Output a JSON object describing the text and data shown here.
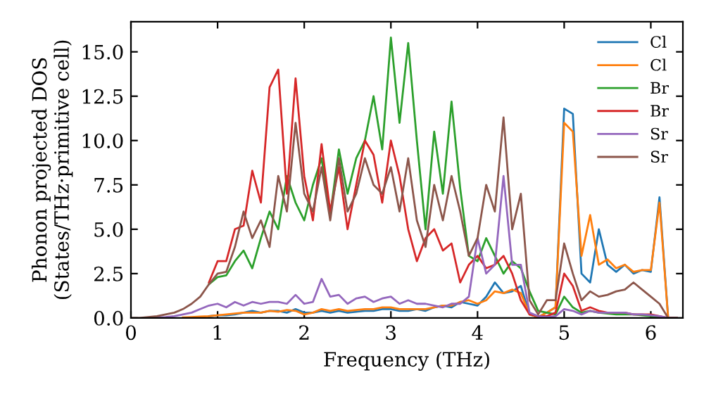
{
  "chart_data": {
    "type": "line",
    "xlabel": "Frequency (THz)",
    "ylabel": "Phonon projected DOS\n(States/THz·primitive cell)",
    "x": [
      0.0,
      0.1,
      0.2,
      0.3,
      0.4,
      0.5,
      0.6,
      0.7,
      0.8,
      0.9,
      1.0,
      1.1,
      1.2,
      1.3,
      1.4,
      1.5,
      1.6,
      1.7,
      1.8,
      1.9,
      2.0,
      2.1,
      2.2,
      2.3,
      2.4,
      2.5,
      2.6,
      2.7,
      2.8,
      2.9,
      3.0,
      3.1,
      3.2,
      3.3,
      3.4,
      3.5,
      3.6,
      3.7,
      3.8,
      3.9,
      4.0,
      4.1,
      4.2,
      4.3,
      4.4,
      4.5,
      4.6,
      4.7,
      4.8,
      4.9,
      5.0,
      5.1,
      5.2,
      5.3,
      5.4,
      5.5,
      5.6,
      5.7,
      5.8,
      5.9,
      6.0,
      6.1,
      6.2,
      6.3
    ],
    "xlim": [
      0,
      6.37
    ],
    "ylim": [
      0,
      16.7
    ],
    "xticks": [
      0,
      1,
      2,
      3,
      4,
      5,
      6
    ],
    "yticks": [
      {
        "value": 0,
        "label": "0.0"
      },
      {
        "value": 2.5,
        "label": "2.5"
      },
      {
        "value": 5,
        "label": "5.0"
      },
      {
        "value": 7.5,
        "label": "7.5"
      },
      {
        "value": 10,
        "label": "10.0"
      },
      {
        "value": 12.5,
        "label": "12.5"
      },
      {
        "value": 15,
        "label": "15.0"
      }
    ],
    "legend": "top right",
    "grid": false,
    "marker": "none",
    "line_style": "solid",
    "series": [
      {
        "name": "Cl",
        "color": "#1f77b4",
        "values": [
          null,
          null,
          null,
          null,
          null,
          null,
          null,
          null,
          null,
          0.1,
          0.15,
          0.15,
          0.2,
          0.3,
          0.4,
          0.3,
          0.4,
          0.4,
          0.3,
          0.5,
          0.3,
          0.3,
          0.4,
          0.3,
          0.4,
          0.3,
          0.35,
          0.4,
          0.4,
          0.5,
          0.5,
          0.4,
          0.4,
          0.5,
          0.4,
          0.6,
          0.7,
          0.6,
          0.9,
          0.8,
          0.7,
          1.2,
          2.0,
          1.4,
          1.5,
          1.8,
          0.2,
          0.05,
          0.3,
          0.6,
          11.8,
          11.5,
          2.5,
          2.0,
          5.0,
          3.0,
          2.6,
          3.0,
          2.5,
          2.7,
          2.6,
          6.8,
          0,
          0
        ]
      },
      {
        "name": "Cl",
        "color": "#ff7f0e",
        "values": [
          null,
          null,
          null,
          null,
          null,
          null,
          0.03,
          0.05,
          0.08,
          0.1,
          0.15,
          0.2,
          0.25,
          0.3,
          0.3,
          0.3,
          0.4,
          0.35,
          0.45,
          0.4,
          0.2,
          0.3,
          0.5,
          0.4,
          0.5,
          0.4,
          0.45,
          0.5,
          0.5,
          0.6,
          0.6,
          0.5,
          0.5,
          0.5,
          0.5,
          0.6,
          0.7,
          0.7,
          0.9,
          1.0,
          0.8,
          1.0,
          1.5,
          1.4,
          1.6,
          1.4,
          0.2,
          0.05,
          0.3,
          0.6,
          11.0,
          10.5,
          3.5,
          5.8,
          3.0,
          3.3,
          2.8,
          3.0,
          2.6,
          2.7,
          2.7,
          6.5,
          0,
          0
        ]
      },
      {
        "name": "Br",
        "color": "#2ca02c",
        "values": [
          null,
          null,
          null,
          null,
          null,
          null,
          null,
          null,
          null,
          1.9,
          2.3,
          2.4,
          3.2,
          3.8,
          2.8,
          4.5,
          6.0,
          5.0,
          8.0,
          6.5,
          5.5,
          7.5,
          9.0,
          5.8,
          9.5,
          7.0,
          9.0,
          10.0,
          12.5,
          9.5,
          15.8,
          11.0,
          15.5,
          10.0,
          5.0,
          10.5,
          7.0,
          12.2,
          7.3,
          3.5,
          3.2,
          4.5,
          3.5,
          2.5,
          3.2,
          2.8,
          1.5,
          0.4,
          0.3,
          0.2,
          1.2,
          0.6,
          0.3,
          0.4,
          0.3,
          0.25,
          0.2,
          0.2,
          0.2,
          0.15,
          0.1,
          0.05,
          0,
          0
        ]
      },
      {
        "name": "Br",
        "color": "#d62728",
        "values": [
          null,
          null,
          null,
          null,
          null,
          null,
          null,
          null,
          null,
          2.0,
          3.2,
          3.2,
          5.0,
          5.2,
          8.3,
          6.5,
          13.0,
          14.0,
          7.0,
          13.5,
          8.0,
          5.5,
          9.8,
          6.0,
          8.5,
          5.0,
          7.5,
          10.0,
          9.2,
          6.5,
          10.0,
          8.0,
          5.0,
          3.2,
          4.5,
          5.0,
          3.8,
          4.2,
          2.0,
          3.0,
          3.5,
          2.8,
          3.0,
          3.5,
          2.5,
          1.0,
          0.2,
          0.1,
          0.1,
          0.3,
          2.5,
          1.8,
          0.4,
          0.6,
          0.4,
          0.3,
          0.3,
          0.3,
          0.2,
          0.2,
          0.2,
          0.1,
          0,
          0
        ]
      },
      {
        "name": "Sr",
        "color": "#9467bd",
        "values": [
          null,
          null,
          null,
          0.02,
          0.05,
          0.1,
          0.2,
          0.3,
          0.5,
          0.7,
          0.8,
          0.6,
          0.9,
          0.7,
          0.9,
          0.8,
          0.9,
          0.9,
          0.8,
          1.3,
          0.8,
          0.9,
          2.2,
          1.2,
          1.3,
          0.8,
          1.1,
          1.2,
          0.9,
          1.1,
          1.2,
          0.8,
          1.0,
          0.8,
          0.8,
          0.7,
          0.6,
          0.8,
          0.8,
          1.2,
          4.5,
          2.5,
          3.0,
          8.0,
          3.0,
          3.0,
          0.3,
          0.1,
          0.05,
          0.1,
          0.5,
          0.4,
          0.2,
          0.4,
          0.3,
          0.3,
          0.3,
          0.3,
          0.2,
          0.2,
          0.15,
          0.1,
          0,
          0
        ]
      },
      {
        "name": "Sr",
        "color": "#8c564b",
        "values": [
          0,
          0,
          0.05,
          0.1,
          0.2,
          0.3,
          0.5,
          0.8,
          1.2,
          1.9,
          2.5,
          2.6,
          4.0,
          6.0,
          4.5,
          5.5,
          4.0,
          8.0,
          6.0,
          11.0,
          7.0,
          6.0,
          8.5,
          5.5,
          9.0,
          6.0,
          7.0,
          9.0,
          7.5,
          7.0,
          8.5,
          6.0,
          9.0,
          5.5,
          4.0,
          7.5,
          5.5,
          8.0,
          6.0,
          3.5,
          4.5,
          7.5,
          6.0,
          11.3,
          5.0,
          7.0,
          1.0,
          0.2,
          1.0,
          1.0,
          4.2,
          2.5,
          1.0,
          1.5,
          1.2,
          1.3,
          1.5,
          1.6,
          2.0,
          1.6,
          1.2,
          0.8,
          0,
          0
        ]
      }
    ]
  }
}
